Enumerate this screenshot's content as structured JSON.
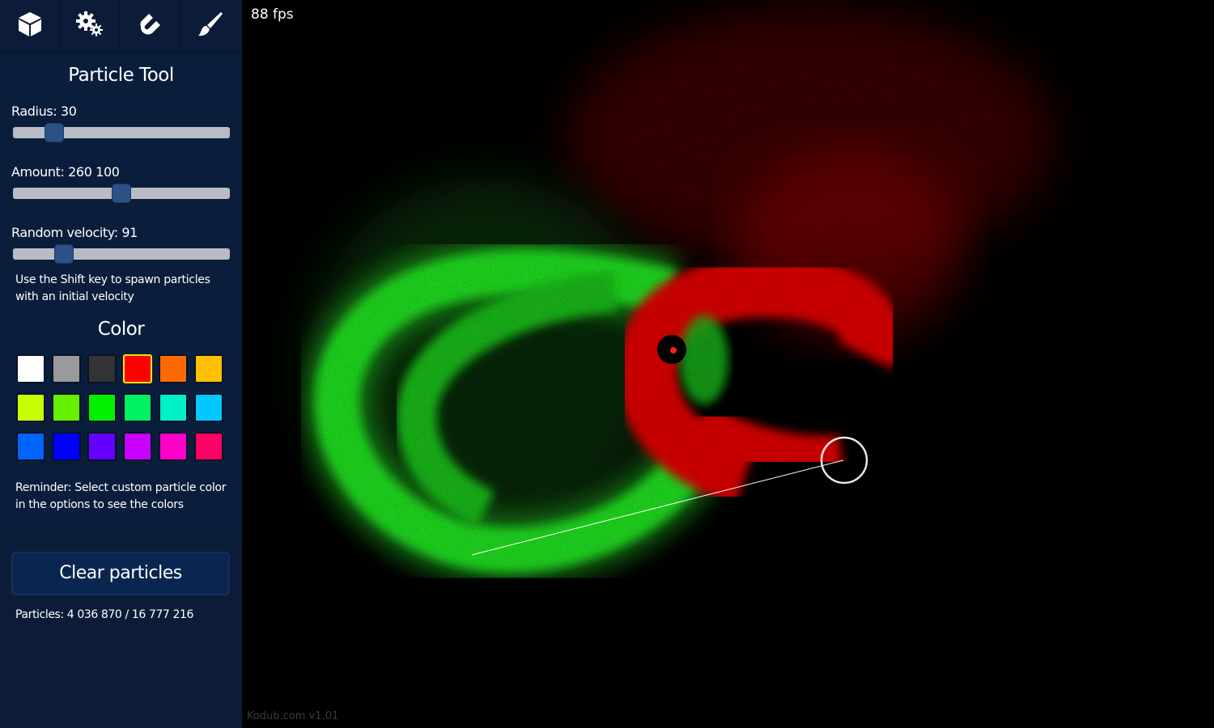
{
  "toolbar": {
    "tools": [
      {
        "icon": "cube-icon"
      },
      {
        "icon": "gears-icon"
      },
      {
        "icon": "magnet-icon"
      },
      {
        "icon": "brush-icon"
      }
    ]
  },
  "panel": {
    "title": "Particle Tool",
    "radius_label": "Radius: 30",
    "radius_fraction": 0.16,
    "amount_label": "Amount: 260 100",
    "amount_fraction": 0.5,
    "velocity_label": "Random velocity: 91",
    "velocity_fraction": 0.21,
    "shift_note": "Use the Shift key to spawn particles with an initial velocity",
    "color_title": "Color",
    "colors": [
      "#ffffff",
      "#9a9a9a",
      "#333333",
      "#ff0000",
      "#ff6a00",
      "#ffc000",
      "#c8ff00",
      "#64f000",
      "#00f000",
      "#00f064",
      "#00f0c8",
      "#00c8ff",
      "#0064ff",
      "#0000ff",
      "#6400ff",
      "#c800ff",
      "#ff00c8",
      "#ff0064"
    ],
    "selected_color": "#ff0000",
    "reminder": "Reminder: Select custom particle color in the options to see the colors",
    "clear_button": "Clear particles",
    "particles": "Particles: 4 036 870 / 16 777 216"
  },
  "canvas": {
    "fps": "88 fps",
    "version": "Kodub.com v1.01"
  }
}
